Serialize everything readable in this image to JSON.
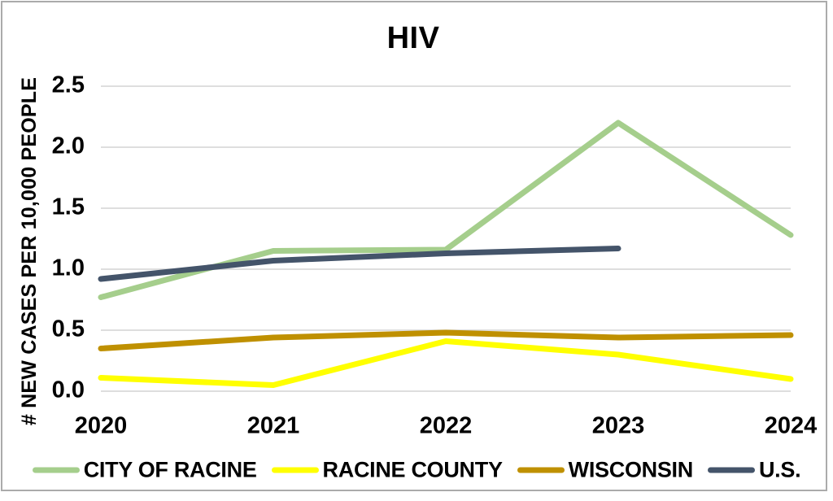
{
  "chart_data": {
    "type": "line",
    "title": "HIV",
    "ylabel": "# NEW CASES PER 10,000 PEOPLE",
    "xlabel": "",
    "categories": [
      "2020",
      "2021",
      "2022",
      "2023",
      "2024"
    ],
    "series": [
      {
        "name": "CITY OF RACINE",
        "color": "#A5CE8C",
        "values": [
          0.77,
          1.15,
          1.16,
          2.2,
          1.28
        ]
      },
      {
        "name": "RACINE COUNTY",
        "color": "#FFFF00",
        "values": [
          0.11,
          0.05,
          0.41,
          0.3,
          0.1
        ]
      },
      {
        "name": "WISCONSIN",
        "color": "#BF9000",
        "values": [
          0.35,
          0.44,
          0.48,
          0.44,
          0.46
        ]
      },
      {
        "name": "U.S.",
        "color": "#44546A",
        "values": [
          0.92,
          1.07,
          1.13,
          1.17,
          null
        ]
      }
    ],
    "ylim": [
      0,
      2.5
    ],
    "ytick_step": 0.5,
    "ytick_labels": [
      "0.0",
      "0.5",
      "1.0",
      "1.5",
      "2.0",
      "2.5"
    ],
    "grid": "horizontal",
    "legend_position": "bottom",
    "gridline_color": "#D9D9D9",
    "text_color": "#000000"
  }
}
